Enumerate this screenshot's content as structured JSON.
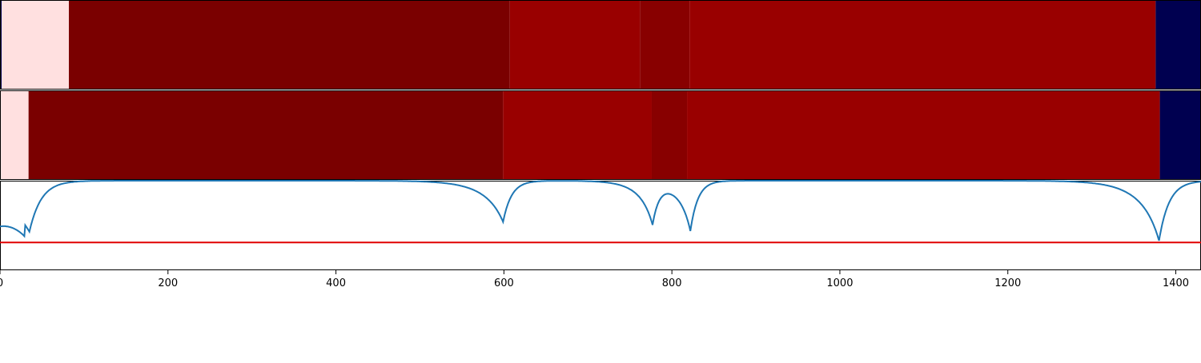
{
  "chart_data": {
    "type": "heatmap",
    "xlim": [
      0,
      1430
    ],
    "x_ticks": [
      0,
      200,
      400,
      600,
      800,
      1000,
      1200,
      1400
    ],
    "x_tick_labels": [
      "0",
      "200",
      "400",
      "600",
      "800",
      "1000",
      "1200",
      "1400"
    ],
    "colors": {
      "lightest": "#ffe0e0",
      "dark_red": "#7a0000",
      "red": "#990000",
      "mid_red": "#880000",
      "navy": "#000050",
      "curve": "#1f77b4",
      "threshold": "#e00000"
    },
    "segment_rows": [
      {
        "segments": [
          {
            "start": 0,
            "end": 2,
            "color": "navy"
          },
          {
            "start": 2,
            "end": 82,
            "color": "lightest"
          },
          {
            "start": 82,
            "end": 607,
            "color": "dark_red"
          },
          {
            "start": 607,
            "end": 762,
            "color": "red"
          },
          {
            "start": 762,
            "end": 821,
            "color": "mid_red"
          },
          {
            "start": 821,
            "end": 1376,
            "color": "red"
          },
          {
            "start": 1376,
            "end": 1430,
            "color": "navy"
          }
        ]
      },
      {
        "segments": [
          {
            "start": 0,
            "end": 34,
            "color": "lightest"
          },
          {
            "start": 34,
            "end": 599,
            "color": "dark_red"
          },
          {
            "start": 599,
            "end": 776,
            "color": "red"
          },
          {
            "start": 776,
            "end": 818,
            "color": "mid_red"
          },
          {
            "start": 818,
            "end": 1381,
            "color": "red"
          },
          {
            "start": 1381,
            "end": 1430,
            "color": "navy"
          }
        ]
      }
    ],
    "signal": {
      "ylim": [
        0,
        1
      ],
      "threshold": 0.31,
      "baseline": 1.0,
      "dips": [
        {
          "x": 35,
          "depth": 0.57,
          "width": 14,
          "lead": 30
        },
        {
          "x": 599,
          "depth": 0.46,
          "width": 10,
          "lead": 16
        },
        {
          "x": 777,
          "depth": 0.46,
          "width": 8,
          "lead": 10
        },
        {
          "x": 822,
          "depth": 0.56,
          "width": 9,
          "lead": 8
        },
        {
          "x": 1380,
          "depth": 0.67,
          "width": 12,
          "lead": 14
        }
      ]
    }
  }
}
